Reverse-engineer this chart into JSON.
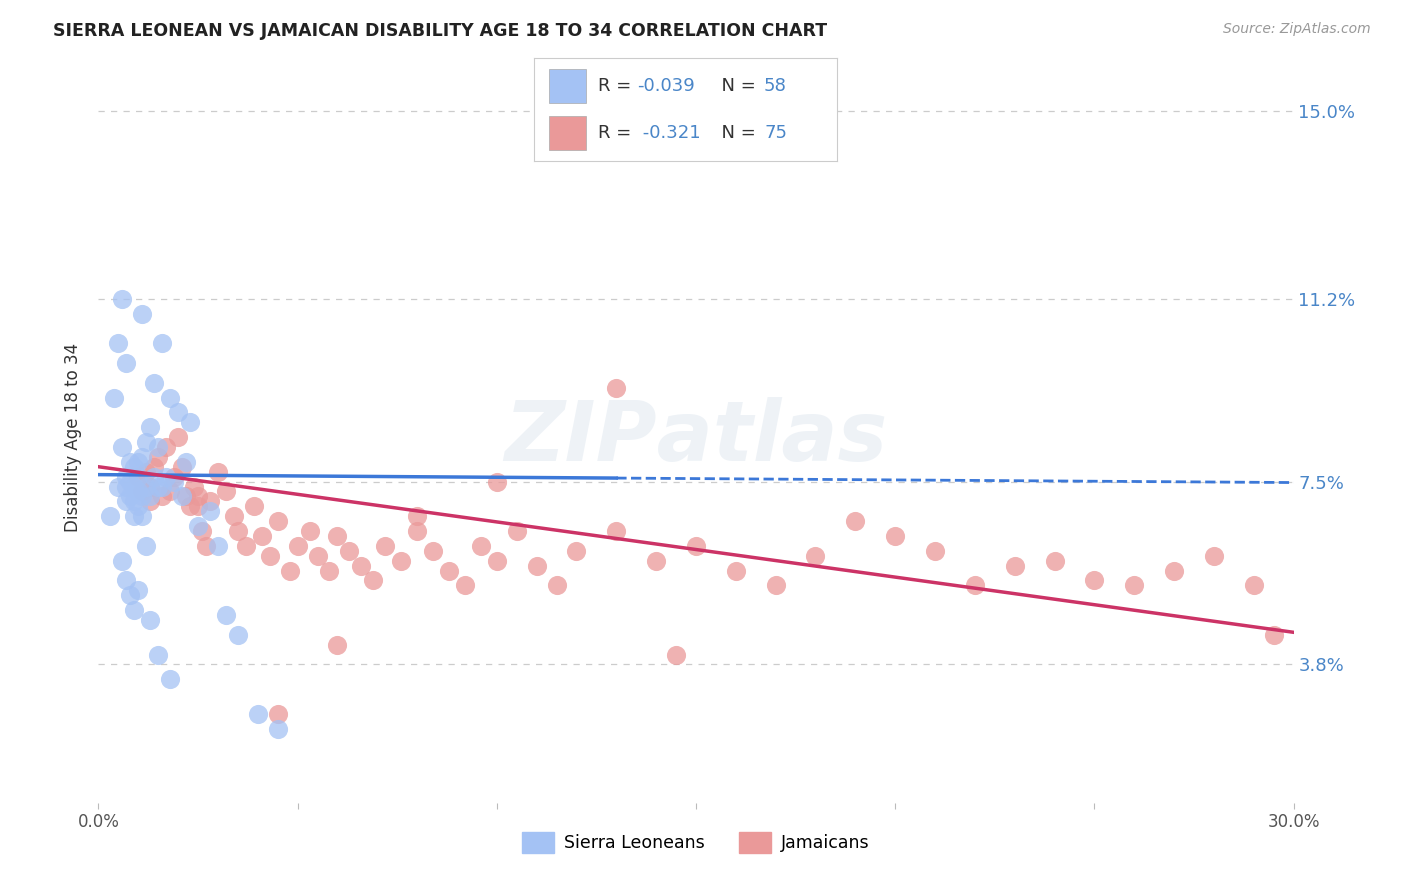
{
  "title": "SIERRA LEONEAN VS JAMAICAN DISABILITY AGE 18 TO 34 CORRELATION CHART",
  "source": "Source: ZipAtlas.com",
  "ylabel": "Disability Age 18 to 34",
  "xlim": [
    0.0,
    0.3
  ],
  "ylim": [
    0.01,
    0.158
  ],
  "xticks": [
    0.0,
    0.05,
    0.1,
    0.15,
    0.2,
    0.25,
    0.3
  ],
  "xticklabels": [
    "0.0%",
    "",
    "",
    "",
    "",
    "",
    "30.0%"
  ],
  "ytick_positions": [
    0.038,
    0.075,
    0.112,
    0.15
  ],
  "ytick_labels": [
    "3.8%",
    "7.5%",
    "11.2%",
    "15.0%"
  ],
  "blue_R": "-0.039",
  "blue_N": "58",
  "pink_R": "-0.321",
  "pink_N": "75",
  "blue_scatter_color": "#a4c2f4",
  "pink_scatter_color": "#ea9999",
  "blue_line_color": "#3c78d8",
  "pink_line_color": "#cc3366",
  "grid_color": "#cccccc",
  "right_tick_color": "#4a86c8",
  "text_color": "#666666",
  "legend_text_color": "#4a86c8",
  "sl_x": [
    0.003,
    0.004,
    0.005,
    0.005,
    0.006,
    0.006,
    0.007,
    0.007,
    0.007,
    0.007,
    0.008,
    0.008,
    0.008,
    0.009,
    0.009,
    0.009,
    0.009,
    0.01,
    0.01,
    0.01,
    0.01,
    0.011,
    0.011,
    0.011,
    0.012,
    0.012,
    0.013,
    0.013,
    0.014,
    0.014,
    0.015,
    0.015,
    0.016,
    0.016,
    0.017,
    0.018,
    0.019,
    0.02,
    0.021,
    0.022,
    0.023,
    0.025,
    0.028,
    0.03,
    0.032,
    0.035,
    0.04,
    0.045,
    0.006,
    0.007,
    0.008,
    0.009,
    0.01,
    0.011,
    0.012,
    0.013,
    0.015,
    0.018
  ],
  "sl_y": [
    0.068,
    0.092,
    0.074,
    0.103,
    0.082,
    0.112,
    0.076,
    0.074,
    0.071,
    0.099,
    0.079,
    0.075,
    0.072,
    0.078,
    0.074,
    0.071,
    0.068,
    0.079,
    0.076,
    0.073,
    0.07,
    0.08,
    0.072,
    0.109,
    0.074,
    0.083,
    0.086,
    0.072,
    0.076,
    0.095,
    0.074,
    0.082,
    0.074,
    0.103,
    0.076,
    0.092,
    0.075,
    0.089,
    0.072,
    0.079,
    0.087,
    0.066,
    0.069,
    0.062,
    0.048,
    0.044,
    0.028,
    0.025,
    0.059,
    0.055,
    0.052,
    0.049,
    0.053,
    0.068,
    0.062,
    0.047,
    0.04,
    0.035
  ],
  "ja_x": [
    0.01,
    0.011,
    0.012,
    0.013,
    0.013,
    0.014,
    0.015,
    0.016,
    0.017,
    0.018,
    0.019,
    0.02,
    0.021,
    0.022,
    0.023,
    0.024,
    0.025,
    0.026,
    0.027,
    0.028,
    0.03,
    0.032,
    0.034,
    0.035,
    0.037,
    0.039,
    0.041,
    0.043,
    0.045,
    0.048,
    0.05,
    0.053,
    0.055,
    0.058,
    0.06,
    0.063,
    0.066,
    0.069,
    0.072,
    0.076,
    0.08,
    0.084,
    0.088,
    0.092,
    0.096,
    0.1,
    0.105,
    0.11,
    0.115,
    0.12,
    0.13,
    0.14,
    0.15,
    0.16,
    0.17,
    0.18,
    0.19,
    0.2,
    0.21,
    0.22,
    0.23,
    0.24,
    0.25,
    0.26,
    0.27,
    0.28,
    0.29,
    0.295,
    0.13,
    0.145,
    0.1,
    0.08,
    0.06,
    0.045,
    0.025
  ],
  "ja_y": [
    0.076,
    0.073,
    0.077,
    0.074,
    0.071,
    0.078,
    0.08,
    0.072,
    0.082,
    0.073,
    0.076,
    0.084,
    0.078,
    0.072,
    0.07,
    0.074,
    0.072,
    0.065,
    0.062,
    0.071,
    0.077,
    0.073,
    0.068,
    0.065,
    0.062,
    0.07,
    0.064,
    0.06,
    0.067,
    0.057,
    0.062,
    0.065,
    0.06,
    0.057,
    0.064,
    0.061,
    0.058,
    0.055,
    0.062,
    0.059,
    0.065,
    0.061,
    0.057,
    0.054,
    0.062,
    0.059,
    0.065,
    0.058,
    0.054,
    0.061,
    0.065,
    0.059,
    0.062,
    0.057,
    0.054,
    0.06,
    0.067,
    0.064,
    0.061,
    0.054,
    0.058,
    0.059,
    0.055,
    0.054,
    0.057,
    0.06,
    0.054,
    0.044,
    0.094,
    0.04,
    0.075,
    0.068,
    0.042,
    0.028,
    0.07
  ],
  "blue_trendline": [
    0.0764,
    0.0748
  ],
  "pink_trendline": [
    0.078,
    0.0445
  ]
}
